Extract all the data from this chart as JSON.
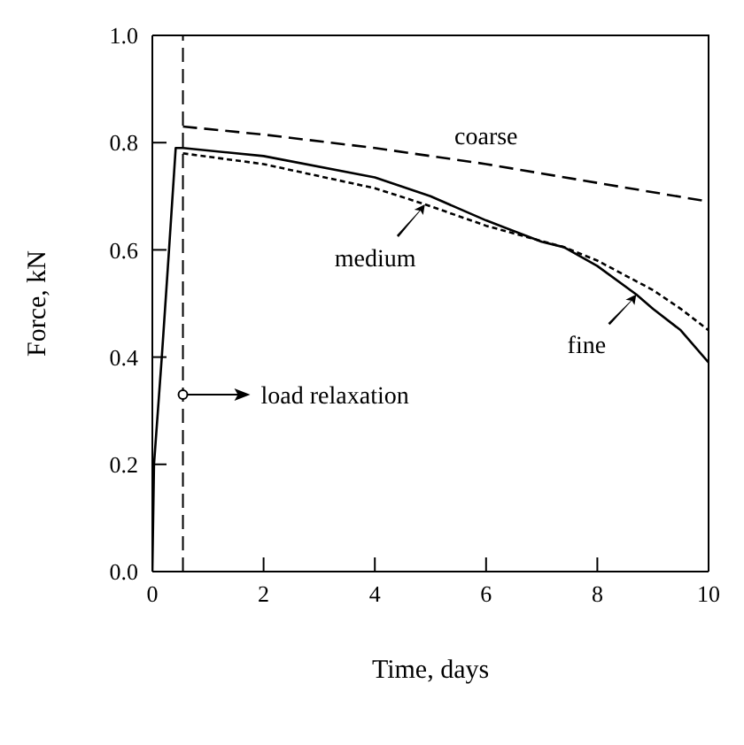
{
  "chart_data": {
    "type": "line",
    "xlabel": "Time, days",
    "ylabel": "Force, kN",
    "xlim": [
      0,
      10
    ],
    "ylim": [
      0,
      1.0
    ],
    "xticks": [
      0,
      2,
      4,
      6,
      8,
      10
    ],
    "yticks": [
      {
        "value": 0,
        "label": "0.0"
      },
      0.2,
      0.4,
      0.6,
      0.8,
      {
        "value": 1,
        "label": "1.0"
      }
    ],
    "marker": "none",
    "legend": "right",
    "series": [
      {
        "name": "coarse",
        "color": "#000000",
        "line_style": "dashed",
        "x": [
          0.55,
          2,
          4,
          5,
          6,
          8,
          10
        ],
        "values": [
          0.83,
          0.815,
          0.79,
          0.775,
          0.76,
          0.725,
          0.69
        ]
      },
      {
        "name": "medium",
        "color": "#000000",
        "line_style": "dotted",
        "x": [
          0.55,
          2,
          4,
          4.9,
          6,
          7.4,
          8,
          9,
          9.5,
          10
        ],
        "values": [
          0.78,
          0.76,
          0.715,
          0.685,
          0.645,
          0.605,
          0.58,
          0.525,
          0.49,
          0.45
        ]
      },
      {
        "name": "fine",
        "color": "#000000",
        "line_style": "solid",
        "x": [
          0,
          0.03,
          0.17,
          0.3,
          0.42,
          0.55,
          2,
          4,
          5,
          6,
          7,
          7.4,
          8,
          8.7,
          9,
          9.5,
          10
        ],
        "values": [
          0,
          0.2,
          0.4,
          0.6,
          0.79,
          0.79,
          0.775,
          0.735,
          0.7,
          0.655,
          0.615,
          0.605,
          0.57,
          0.517,
          0.49,
          0.45,
          0.39
        ]
      }
    ],
    "ref_lines": [
      {
        "axis": "x",
        "value": 0.55,
        "label": "load relaxation",
        "line_style": "dashed",
        "color": "#000000"
      }
    ]
  }
}
